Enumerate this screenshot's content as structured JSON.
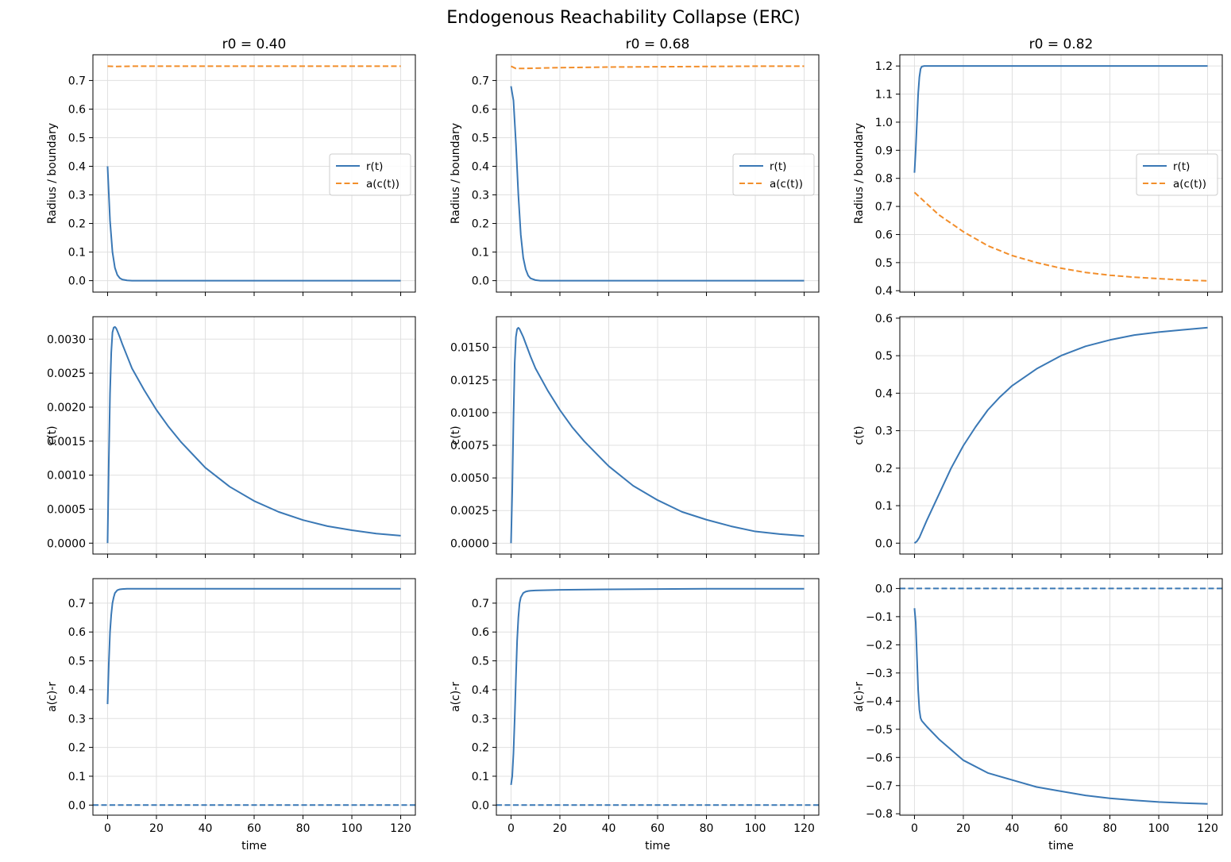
{
  "figure": {
    "title": "Endogenous Reachability Collapse (ERC)"
  },
  "colors": {
    "r_series": "#3a78b5",
    "a_series": "#f28e2b",
    "zero_line": "#3a78b5",
    "grid": "#e0e0e0",
    "axes": "#000000"
  },
  "chart_data": [
    {
      "type": "line",
      "panel": "row1-col1",
      "title": "r0 = 0.40",
      "xlabel": "",
      "ylabel": "Radius / boundary",
      "xlim": [
        -6,
        126
      ],
      "ylim": [
        -0.04,
        0.79
      ],
      "xticks": [
        0,
        20,
        40,
        60,
        80,
        100,
        120
      ],
      "xtick_labels_visible": false,
      "yticks": [
        0.0,
        0.1,
        0.2,
        0.3,
        0.4,
        0.5,
        0.6,
        0.7
      ],
      "ytick_labels": [
        "0.0",
        "0.1",
        "0.2",
        "0.3",
        "0.4",
        "0.5",
        "0.6",
        "0.7"
      ],
      "grid": true,
      "legend": "right",
      "series": [
        {
          "name": "r(t)",
          "style": "solid",
          "color": "#3a78b5",
          "x": [
            0,
            1,
            2,
            3,
            4,
            5,
            6,
            8,
            10,
            20,
            40,
            60,
            80,
            100,
            120
          ],
          "y": [
            0.4,
            0.21,
            0.1,
            0.045,
            0.02,
            0.009,
            0.004,
            0.001,
            0.0,
            0.0,
            0.0,
            0.0,
            0.0,
            0.0,
            0.0
          ]
        },
        {
          "name": "a(c(t))",
          "style": "dashed",
          "color": "#f28e2b",
          "x": [
            0,
            3,
            10,
            40,
            80,
            120
          ],
          "y": [
            0.75,
            0.749,
            0.75,
            0.75,
            0.75,
            0.75
          ]
        }
      ]
    },
    {
      "type": "line",
      "panel": "row1-col2",
      "title": "r0 = 0.68",
      "xlabel": "",
      "ylabel": "Radius / boundary",
      "xlim": [
        -6,
        126
      ],
      "ylim": [
        -0.04,
        0.79
      ],
      "xticks": [
        0,
        20,
        40,
        60,
        80,
        100,
        120
      ],
      "xtick_labels_visible": false,
      "yticks": [
        0.0,
        0.1,
        0.2,
        0.3,
        0.4,
        0.5,
        0.6,
        0.7
      ],
      "ytick_labels": [
        "0.0",
        "0.1",
        "0.2",
        "0.3",
        "0.4",
        "0.5",
        "0.6",
        "0.7"
      ],
      "grid": true,
      "legend": "right",
      "series": [
        {
          "name": "r(t)",
          "style": "solid",
          "color": "#3a78b5",
          "x": [
            0,
            1,
            2,
            3,
            4,
            5,
            6,
            7,
            8,
            10,
            12,
            20,
            40,
            60,
            80,
            100,
            120
          ],
          "y": [
            0.68,
            0.63,
            0.48,
            0.3,
            0.16,
            0.08,
            0.04,
            0.018,
            0.008,
            0.002,
            0.0,
            0.0,
            0.0,
            0.0,
            0.0,
            0.0,
            0.0
          ]
        },
        {
          "name": "a(c(t))",
          "style": "dashed",
          "color": "#f28e2b",
          "x": [
            0,
            2,
            4,
            10,
            20,
            40,
            60,
            80,
            100,
            120
          ],
          "y": [
            0.75,
            0.742,
            0.742,
            0.743,
            0.745,
            0.747,
            0.748,
            0.749,
            0.75,
            0.75
          ]
        }
      ]
    },
    {
      "type": "line",
      "panel": "row1-col3",
      "title": "r0 = 0.82",
      "xlabel": "",
      "ylabel": "Radius / boundary",
      "xlim": [
        -6,
        126
      ],
      "ylim": [
        0.395,
        1.24
      ],
      "xticks": [
        0,
        20,
        40,
        60,
        80,
        100,
        120
      ],
      "xtick_labels_visible": false,
      "yticks": [
        0.4,
        0.5,
        0.6,
        0.7,
        0.8,
        0.9,
        1.0,
        1.1,
        1.2
      ],
      "ytick_labels": [
        "0.4",
        "0.5",
        "0.6",
        "0.7",
        "0.8",
        "0.9",
        "1.0",
        "1.1",
        "1.2"
      ],
      "grid": true,
      "legend": "right",
      "series": [
        {
          "name": "r(t)",
          "style": "solid",
          "color": "#3a78b5",
          "x": [
            0,
            0.5,
            1,
            1.5,
            2,
            2.5,
            3,
            4,
            5,
            10,
            40,
            80,
            120
          ],
          "y": [
            0.82,
            0.9,
            1.0,
            1.1,
            1.16,
            1.19,
            1.198,
            1.2,
            1.2,
            1.2,
            1.2,
            1.2,
            1.2
          ]
        },
        {
          "name": "a(c(t))",
          "style": "dashed",
          "color": "#f28e2b",
          "x": [
            0,
            5,
            10,
            20,
            30,
            40,
            50,
            60,
            70,
            80,
            90,
            100,
            110,
            120
          ],
          "y": [
            0.75,
            0.71,
            0.67,
            0.61,
            0.56,
            0.525,
            0.5,
            0.48,
            0.465,
            0.455,
            0.448,
            0.443,
            0.438,
            0.435
          ]
        }
      ]
    },
    {
      "type": "line",
      "panel": "row2-col1",
      "title": "",
      "xlabel": "",
      "ylabel": "c(t)",
      "xlim": [
        -6,
        126
      ],
      "ylim": [
        -0.00016,
        0.00333
      ],
      "xticks": [
        0,
        20,
        40,
        60,
        80,
        100,
        120
      ],
      "xtick_labels_visible": false,
      "yticks": [
        0.0,
        0.0005,
        0.001,
        0.0015,
        0.002,
        0.0025,
        0.003
      ],
      "ytick_labels": [
        "0.0000",
        "0.0005",
        "0.0010",
        "0.0015",
        "0.0020",
        "0.0025",
        "0.0030"
      ],
      "grid": true,
      "legend": "none",
      "series": [
        {
          "name": "",
          "style": "solid",
          "color": "#3a78b5",
          "x": [
            0,
            0.5,
            1,
            1.5,
            2,
            2.5,
            3,
            3.5,
            4,
            5,
            6,
            8,
            10,
            15,
            20,
            25,
            30,
            40,
            50,
            60,
            70,
            80,
            90,
            100,
            110,
            120
          ],
          "y": [
            0.0,
            0.0012,
            0.0022,
            0.0028,
            0.0031,
            0.00317,
            0.00318,
            0.00316,
            0.00312,
            0.00303,
            0.00293,
            0.00275,
            0.00257,
            0.00225,
            0.00196,
            0.00171,
            0.00149,
            0.00111,
            0.00083,
            0.00062,
            0.00046,
            0.00034,
            0.00025,
            0.00019,
            0.00014,
            0.00011
          ]
        }
      ]
    },
    {
      "type": "line",
      "panel": "row2-col2",
      "title": "",
      "xlabel": "",
      "ylabel": "c(t)",
      "xlim": [
        -6,
        126
      ],
      "ylim": [
        -0.00083,
        0.01735
      ],
      "xticks": [
        0,
        20,
        40,
        60,
        80,
        100,
        120
      ],
      "xtick_labels_visible": false,
      "yticks": [
        0.0,
        0.0025,
        0.005,
        0.0075,
        0.01,
        0.0125,
        0.015
      ],
      "ytick_labels": [
        "0.0000",
        "0.0025",
        "0.0050",
        "0.0075",
        "0.0100",
        "0.0125",
        "0.0150"
      ],
      "grid": true,
      "legend": "none",
      "series": [
        {
          "name": "",
          "style": "solid",
          "color": "#3a78b5",
          "x": [
            0,
            0.5,
            1,
            1.5,
            2,
            2.5,
            3,
            3.5,
            4,
            5,
            6,
            8,
            10,
            15,
            20,
            25,
            30,
            40,
            50,
            60,
            70,
            80,
            90,
            100,
            110,
            120
          ],
          "y": [
            0.0,
            0.004,
            0.0095,
            0.0138,
            0.0158,
            0.0164,
            0.0165,
            0.0164,
            0.0162,
            0.0158,
            0.0153,
            0.0143,
            0.0134,
            0.0117,
            0.0102,
            0.0089,
            0.0078,
            0.0059,
            0.0044,
            0.0033,
            0.0024,
            0.0018,
            0.0013,
            0.0009,
            0.0007,
            0.00055
          ]
        }
      ]
    },
    {
      "type": "line",
      "panel": "row2-col3",
      "title": "",
      "xlabel": "",
      "ylabel": "c(t)",
      "xlim": [
        -6,
        126
      ],
      "ylim": [
        -0.029,
        0.604
      ],
      "xticks": [
        0,
        20,
        40,
        60,
        80,
        100,
        120
      ],
      "xtick_labels_visible": false,
      "yticks": [
        0.0,
        0.1,
        0.2,
        0.3,
        0.4,
        0.5,
        0.6
      ],
      "ytick_labels": [
        "0.0",
        "0.1",
        "0.2",
        "0.3",
        "0.4",
        "0.5",
        "0.6"
      ],
      "grid": true,
      "legend": "none",
      "series": [
        {
          "name": "",
          "style": "solid",
          "color": "#3a78b5",
          "x": [
            0,
            1,
            2,
            3,
            5,
            10,
            15,
            20,
            25,
            30,
            35,
            40,
            50,
            60,
            70,
            80,
            90,
            100,
            110,
            120
          ],
          "y": [
            0.0,
            0.005,
            0.015,
            0.03,
            0.06,
            0.13,
            0.2,
            0.26,
            0.31,
            0.355,
            0.39,
            0.42,
            0.465,
            0.5,
            0.525,
            0.542,
            0.555,
            0.563,
            0.569,
            0.575
          ]
        }
      ]
    },
    {
      "type": "line",
      "panel": "row3-col1",
      "title": "",
      "xlabel": "time",
      "ylabel": "a(c)-r",
      "xlim": [
        -6,
        126
      ],
      "ylim": [
        -0.035,
        0.785
      ],
      "xticks": [
        0,
        20,
        40,
        60,
        80,
        100,
        120
      ],
      "xtick_labels": [
        "0",
        "20",
        "40",
        "60",
        "80",
        "100",
        "120"
      ],
      "yticks": [
        0.0,
        0.1,
        0.2,
        0.3,
        0.4,
        0.5,
        0.6,
        0.7
      ],
      "ytick_labels": [
        "0.0",
        "0.1",
        "0.2",
        "0.3",
        "0.4",
        "0.5",
        "0.6",
        "0.7"
      ],
      "grid": true,
      "legend": "none",
      "series": [
        {
          "name": "",
          "style": "solid",
          "color": "#3a78b5",
          "x": [
            0,
            0.5,
            1,
            1.5,
            2,
            2.5,
            3,
            4,
            5,
            6,
            8,
            10,
            20,
            40,
            60,
            80,
            100,
            120
          ],
          "y": [
            0.35,
            0.49,
            0.6,
            0.66,
            0.7,
            0.72,
            0.735,
            0.745,
            0.748,
            0.749,
            0.75,
            0.75,
            0.75,
            0.75,
            0.75,
            0.75,
            0.75,
            0.75
          ]
        },
        {
          "name": "",
          "style": "dashed",
          "color": "#3a78b5",
          "x": [
            -6,
            126
          ],
          "y": [
            0.0,
            0.0
          ]
        }
      ]
    },
    {
      "type": "line",
      "panel": "row3-col2",
      "title": "",
      "xlabel": "time",
      "ylabel": "a(c)-r",
      "xlim": [
        -6,
        126
      ],
      "ylim": [
        -0.035,
        0.785
      ],
      "xticks": [
        0,
        20,
        40,
        60,
        80,
        100,
        120
      ],
      "xtick_labels": [
        "0",
        "20",
        "40",
        "60",
        "80",
        "100",
        "120"
      ],
      "yticks": [
        0.0,
        0.1,
        0.2,
        0.3,
        0.4,
        0.5,
        0.6,
        0.7
      ],
      "ytick_labels": [
        "0.0",
        "0.1",
        "0.2",
        "0.3",
        "0.4",
        "0.5",
        "0.6",
        "0.7"
      ],
      "grid": true,
      "legend": "none",
      "series": [
        {
          "name": "",
          "style": "solid",
          "color": "#3a78b5",
          "x": [
            0,
            0.5,
            1,
            1.5,
            2,
            2.5,
            3,
            3.5,
            4,
            5,
            6,
            7,
            8,
            10,
            20,
            40,
            60,
            80,
            100,
            120
          ],
          "y": [
            0.07,
            0.1,
            0.18,
            0.3,
            0.44,
            0.57,
            0.65,
            0.7,
            0.72,
            0.735,
            0.74,
            0.742,
            0.743,
            0.744,
            0.746,
            0.748,
            0.749,
            0.75,
            0.75,
            0.75
          ]
        },
        {
          "name": "",
          "style": "dashed",
          "color": "#3a78b5",
          "x": [
            -6,
            126
          ],
          "y": [
            0.0,
            0.0
          ]
        }
      ]
    },
    {
      "type": "line",
      "panel": "row3-col3",
      "title": "",
      "xlabel": "time",
      "ylabel": "a(c)-r",
      "xlim": [
        -6,
        126
      ],
      "ylim": [
        -0.805,
        0.035
      ],
      "xticks": [
        0,
        20,
        40,
        60,
        80,
        100,
        120
      ],
      "xtick_labels": [
        "0",
        "20",
        "40",
        "60",
        "80",
        "100",
        "120"
      ],
      "yticks": [
        0.0,
        -0.1,
        -0.2,
        -0.3,
        -0.4,
        -0.5,
        -0.6,
        -0.7,
        -0.8
      ],
      "ytick_labels": [
        "0.0",
        "−0.1",
        "−0.2",
        "−0.3",
        "−0.4",
        "−0.5",
        "−0.6",
        "−0.7",
        "−0.8"
      ],
      "grid": true,
      "legend": "none",
      "series": [
        {
          "name": "",
          "style": "solid",
          "color": "#3a78b5",
          "x": [
            0,
            0.5,
            1,
            1.5,
            2,
            2.5,
            3,
            4,
            5,
            10,
            20,
            30,
            40,
            50,
            60,
            70,
            80,
            90,
            100,
            110,
            120
          ],
          "y": [
            -0.07,
            -0.12,
            -0.24,
            -0.36,
            -0.43,
            -0.46,
            -0.47,
            -0.48,
            -0.49,
            -0.535,
            -0.61,
            -0.655,
            -0.68,
            -0.705,
            -0.72,
            -0.735,
            -0.745,
            -0.752,
            -0.758,
            -0.762,
            -0.765
          ]
        },
        {
          "name": "",
          "style": "dashed",
          "color": "#3a78b5",
          "x": [
            -6,
            126
          ],
          "y": [
            0.0,
            0.0
          ]
        }
      ]
    }
  ]
}
